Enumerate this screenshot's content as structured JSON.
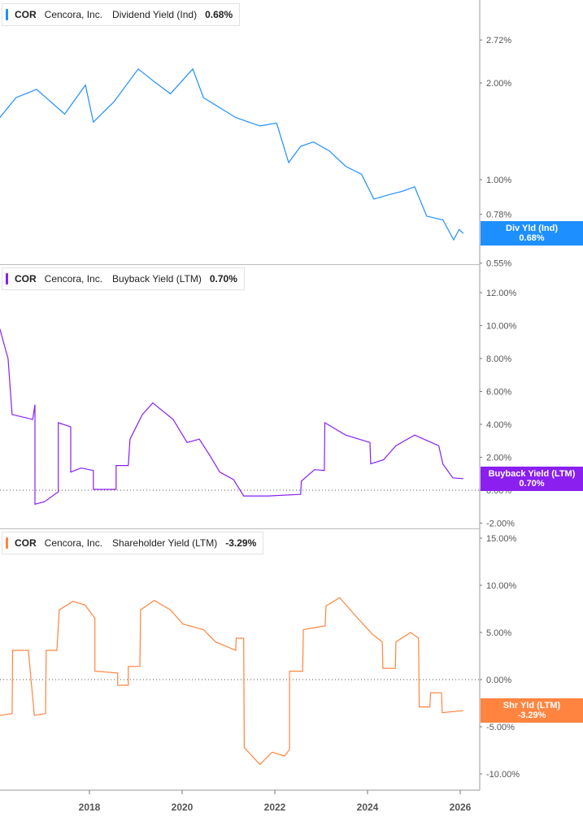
{
  "chart_data": [
    {
      "type": "line",
      "ticker": "COR",
      "company": "Cencora, Inc.",
      "series_name": "Dividend Yield (Ind)",
      "current_value": "0.68%",
      "tag_label": "Div Yld (Ind)",
      "color": "#1e8fff",
      "yscale": "log",
      "ylim": [
        0.55,
        3.3
      ],
      "yticks": [
        2.72,
        2.0,
        1.0,
        0.78,
        0.55
      ],
      "ytick_labels": [
        "2.72%",
        "2.00%",
        "1.00%",
        "0.78%",
        "0.55%"
      ],
      "points": [
        [
          "2016-01-25",
          1.56
        ],
        [
          "2016-06-01",
          1.8
        ],
        [
          "2016-11-10",
          1.91
        ],
        [
          "2017-06-20",
          1.6
        ],
        [
          "2017-12-01",
          1.97
        ],
        [
          "2018-02-01",
          1.51
        ],
        [
          "2018-07-15",
          1.75
        ],
        [
          "2019-01-20",
          2.21
        ],
        [
          "2019-05-25",
          2.02
        ],
        [
          "2019-10-01",
          1.85
        ],
        [
          "2020-03-25",
          2.21
        ],
        [
          "2020-06-17",
          1.8
        ],
        [
          "2021-02-27",
          1.56
        ],
        [
          "2021-09-05",
          1.47
        ],
        [
          "2022-01-15",
          1.5
        ],
        [
          "2022-04-20",
          1.13
        ],
        [
          "2022-07-23",
          1.27
        ],
        [
          "2022-11-01",
          1.31
        ],
        [
          "2023-03-05",
          1.23
        ],
        [
          "2023-07-13",
          1.1
        ],
        [
          "2023-11-15",
          1.04
        ],
        [
          "2024-02-20",
          0.87
        ],
        [
          "2024-06-28",
          0.9
        ],
        [
          "2024-10-01",
          0.92
        ],
        [
          "2025-01-07",
          0.95
        ],
        [
          "2025-04-12",
          0.77
        ],
        [
          "2025-08-17",
          0.75
        ],
        [
          "2025-11-10",
          0.65
        ],
        [
          "2025-12-24",
          0.7
        ],
        [
          "2026-01-26",
          0.68
        ]
      ]
    },
    {
      "type": "line",
      "ticker": "COR",
      "company": "Cencora, Inc.",
      "series_name": "Buyback Yield (LTM)",
      "current_value": "0.70%",
      "tag_label": "Buyback Yield (LTM)",
      "color": "#8a1ff0",
      "yscale": "linear",
      "ylim": [
        -2.5,
        13
      ],
      "yticks": [
        12,
        10,
        8,
        6,
        4,
        2,
        0,
        -2
      ],
      "ytick_labels": [
        "12.00%",
        "10.00%",
        "8.00%",
        "6.00%",
        "4.00%",
        "2.00%",
        "0.00%",
        "-2.00%"
      ],
      "zero_line": true,
      "points": [
        [
          "2016-01-25",
          9.8
        ],
        [
          "2016-03-30",
          8.0
        ],
        [
          "2016-05-01",
          4.6
        ],
        [
          "2016-10-10",
          4.3
        ],
        [
          "2016-10-28",
          5.2
        ],
        [
          "2016-10-28",
          -0.85
        ],
        [
          "2017-01-12",
          -0.7
        ],
        [
          "2017-05-01",
          -0.1
        ],
        [
          "2017-05-01",
          4.1
        ],
        [
          "2017-08-07",
          3.85
        ],
        [
          "2017-08-07",
          1.1
        ],
        [
          "2017-10-27",
          1.35
        ],
        [
          "2018-02-01",
          1.2
        ],
        [
          "2018-02-01",
          0.05
        ],
        [
          "2018-07-30",
          0.05
        ],
        [
          "2018-07-30",
          1.5
        ],
        [
          "2018-11-03",
          1.5
        ],
        [
          "2018-11-17",
          3.1
        ],
        [
          "2019-02-22",
          4.6
        ],
        [
          "2019-05-15",
          5.3
        ],
        [
          "2019-10-22",
          4.3
        ],
        [
          "2020-02-09",
          2.9
        ],
        [
          "2020-05-15",
          3.1
        ],
        [
          "2020-08-07",
          2.1
        ],
        [
          "2020-10-23",
          1.1
        ],
        [
          "2021-02-09",
          0.65
        ],
        [
          "2021-05-01",
          -0.35
        ],
        [
          "2021-11-10",
          -0.35
        ],
        [
          "2022-07-23",
          -0.25
        ],
        [
          "2022-07-29",
          0.55
        ],
        [
          "2022-11-10",
          1.25
        ],
        [
          "2023-01-26",
          1.2
        ],
        [
          "2023-01-30",
          4.1
        ],
        [
          "2023-07-13",
          3.35
        ],
        [
          "2024-01-20",
          2.9
        ],
        [
          "2024-01-26",
          1.6
        ],
        [
          "2024-05-07",
          1.85
        ],
        [
          "2024-08-11",
          2.7
        ],
        [
          "2025-01-07",
          3.35
        ],
        [
          "2025-07-16",
          2.7
        ],
        [
          "2025-08-17",
          1.6
        ],
        [
          "2025-11-03",
          0.75
        ],
        [
          "2026-01-26",
          0.7
        ]
      ]
    },
    {
      "type": "line",
      "ticker": "COR",
      "company": "Cencora, Inc.",
      "series_name": "Shareholder Yield (LTM)",
      "current_value": "-3.29%",
      "tag_label": "Shr Yld (LTM)",
      "color": "#ff8440",
      "yscale": "linear",
      "ylim": [
        -11.5,
        16
      ],
      "yticks": [
        15,
        10,
        5,
        0,
        -5,
        -10
      ],
      "ytick_labels": [
        "15.00%",
        "10.00%",
        "5.00%",
        "0.00%",
        "-5.00%",
        "-10.00%"
      ],
      "zero_line": true,
      "points": [
        [
          "2016-01-25",
          -3.8
        ],
        [
          "2016-05-01",
          -3.6
        ],
        [
          "2016-05-05",
          3.1
        ],
        [
          "2016-09-06",
          3.1
        ],
        [
          "2016-10-23",
          -3.8
        ],
        [
          "2017-01-20",
          -3.6
        ],
        [
          "2017-01-25",
          3.1
        ],
        [
          "2017-04-20",
          3.1
        ],
        [
          "2017-05-08",
          7.4
        ],
        [
          "2017-08-25",
          8.3
        ],
        [
          "2017-11-29",
          7.9
        ],
        [
          "2018-02-13",
          6.5
        ],
        [
          "2018-02-13",
          0.9
        ],
        [
          "2018-08-12",
          0.7
        ],
        [
          "2018-08-12",
          -0.6
        ],
        [
          "2018-11-03",
          -0.6
        ],
        [
          "2018-11-03",
          1.4
        ],
        [
          "2019-02-02",
          1.4
        ],
        [
          "2019-02-08",
          7.4
        ],
        [
          "2019-05-26",
          8.4
        ],
        [
          "2019-10-01",
          7.4
        ],
        [
          "2020-01-07",
          5.9
        ],
        [
          "2020-06-17",
          5.3
        ],
        [
          "2020-09-20",
          4.0
        ],
        [
          "2021-02-27",
          3.1
        ],
        [
          "2021-03-03",
          4.4
        ],
        [
          "2021-05-01",
          4.4
        ],
        [
          "2021-05-05",
          -7.2
        ],
        [
          "2021-09-05",
          -9.0
        ],
        [
          "2021-12-11",
          -7.7
        ],
        [
          "2022-03-18",
          -8.1
        ],
        [
          "2022-04-27",
          -7.4
        ],
        [
          "2022-04-27",
          0.9
        ],
        [
          "2022-08-08",
          0.9
        ],
        [
          "2022-08-14",
          5.3
        ],
        [
          "2023-02-02",
          5.7
        ],
        [
          "2023-02-08",
          7.8
        ],
        [
          "2023-05-26",
          8.7
        ],
        [
          "2023-10-16",
          6.5
        ],
        [
          "2024-02-09",
          4.8
        ],
        [
          "2024-04-26",
          4.0
        ],
        [
          "2024-05-01",
          1.2
        ],
        [
          "2024-08-07",
          1.2
        ],
        [
          "2024-08-12",
          4.0
        ],
        [
          "2024-12-05",
          5.0
        ],
        [
          "2025-02-07",
          4.4
        ],
        [
          "2025-02-12",
          -2.9
        ],
        [
          "2025-05-07",
          -2.9
        ],
        [
          "2025-05-12",
          -1.4
        ],
        [
          "2025-08-07",
          -1.4
        ],
        [
          "2025-08-12",
          -3.5
        ],
        [
          "2026-01-26",
          -3.29
        ]
      ]
    }
  ],
  "x_axis": {
    "type": "date",
    "tick_labels": [
      "2018",
      "2020",
      "2022",
      "2024",
      "2026"
    ]
  }
}
